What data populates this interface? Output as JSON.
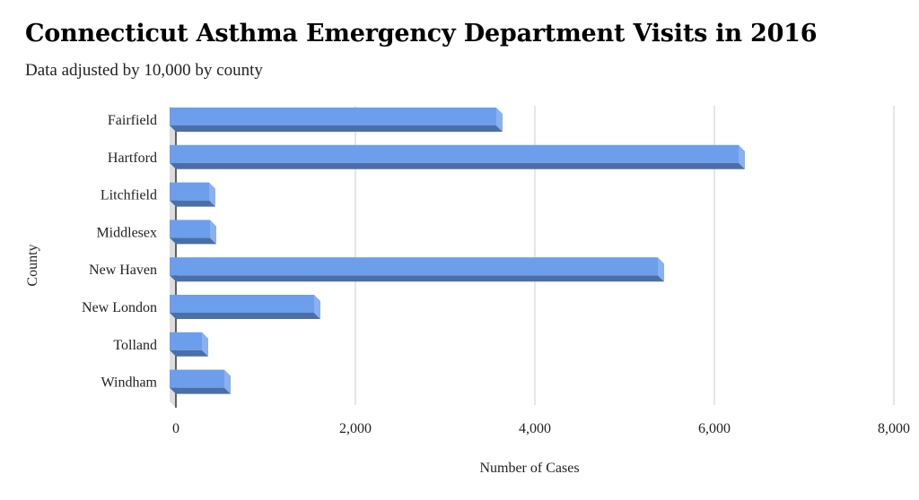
{
  "chart_data": {
    "type": "bar",
    "orientation": "horizontal",
    "title": "Connecticut Asthma Emergency Department Visits in 2016",
    "subtitle": "Data adjusted by 10,000 by county",
    "xlabel": "Number of Cases",
    "ylabel": "County",
    "categories": [
      "Fairfield",
      "Hartford",
      "Litchfield",
      "Middlesex",
      "New Haven",
      "New London",
      "Tolland",
      "Windham"
    ],
    "values": [
      3650,
      6350,
      450,
      460,
      5450,
      1620,
      370,
      620
    ],
    "xlim": [
      0,
      8000
    ],
    "xticks": [
      "0",
      "2,000",
      "4,000",
      "6,000",
      "8,000"
    ],
    "xtick_values": [
      0,
      2000,
      4000,
      6000,
      8000
    ],
    "grid": true,
    "bar_color": "#6d9eeb"
  }
}
